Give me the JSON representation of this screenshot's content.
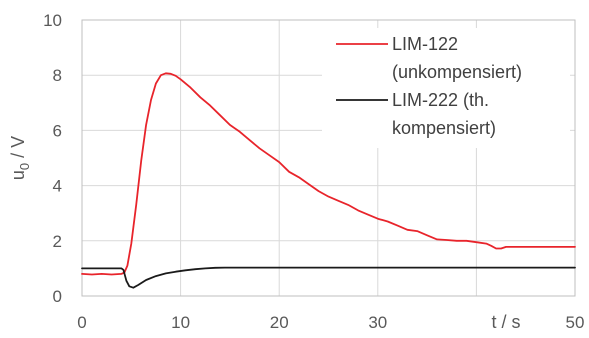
{
  "chart_data": {
    "type": "line",
    "title": "",
    "xlabel": "t / s",
    "ylabel_main": "u",
    "ylabel_sub": "0",
    "ylabel_unit": " / V",
    "xlim": [
      0,
      50
    ],
    "ylim": [
      0,
      10
    ],
    "xticks": [
      0,
      10,
      20,
      30,
      40,
      50
    ],
    "xtick_labels": [
      "0",
      "10",
      "20",
      "30",
      "",
      "50"
    ],
    "yticks": [
      0,
      2,
      4,
      6,
      8,
      10
    ],
    "grid": true,
    "legend_position": "top-right",
    "series": [
      {
        "name_line1": "LIM-122",
        "name_line2": "(unkompensiert)",
        "color": "#e8242b",
        "x": [
          0,
          1,
          2,
          3,
          4,
          4.3,
          4.6,
          5,
          5.5,
          6,
          6.5,
          7,
          7.5,
          8,
          8.5,
          9,
          9.5,
          10,
          11,
          12,
          13,
          14,
          15,
          16,
          17,
          18,
          19,
          20,
          21,
          22,
          23,
          24,
          25,
          26,
          27,
          28,
          29,
          30,
          31,
          32,
          33,
          34,
          35,
          36,
          37,
          38,
          39,
          40,
          41,
          41.5,
          42,
          42.5,
          43,
          44,
          45,
          46,
          47,
          48,
          49,
          50
        ],
        "y": [
          0.8,
          0.78,
          0.8,
          0.78,
          0.8,
          0.85,
          1.1,
          1.9,
          3.3,
          4.9,
          6.2,
          7.1,
          7.7,
          8.0,
          8.07,
          8.05,
          7.98,
          7.85,
          7.55,
          7.2,
          6.9,
          6.55,
          6.2,
          5.95,
          5.65,
          5.35,
          5.1,
          4.85,
          4.5,
          4.3,
          4.05,
          3.8,
          3.6,
          3.45,
          3.3,
          3.1,
          2.95,
          2.8,
          2.7,
          2.55,
          2.4,
          2.35,
          2.2,
          2.05,
          2.03,
          2.0,
          2.0,
          1.95,
          1.9,
          1.82,
          1.72,
          1.72,
          1.78,
          1.78,
          1.78,
          1.78,
          1.78,
          1.78,
          1.78,
          1.78
        ]
      },
      {
        "name_line1": "LIM-222 (th.",
        "name_line2": "kompensiert)",
        "color": "#1a1a1a",
        "x": [
          0,
          1,
          2,
          3,
          4,
          4.2,
          4.5,
          4.8,
          5.2,
          5.7,
          6.5,
          7.5,
          8.5,
          9.5,
          10.5,
          11.5,
          12.5,
          13.5,
          14.5,
          16,
          20,
          25,
          30,
          35,
          40,
          45,
          50
        ],
        "y": [
          1.0,
          1.0,
          1.0,
          1.0,
          1.0,
          0.95,
          0.55,
          0.35,
          0.3,
          0.4,
          0.58,
          0.72,
          0.82,
          0.88,
          0.93,
          0.97,
          1.0,
          1.02,
          1.03,
          1.03,
          1.03,
          1.03,
          1.03,
          1.03,
          1.03,
          1.03,
          1.03
        ]
      }
    ]
  }
}
